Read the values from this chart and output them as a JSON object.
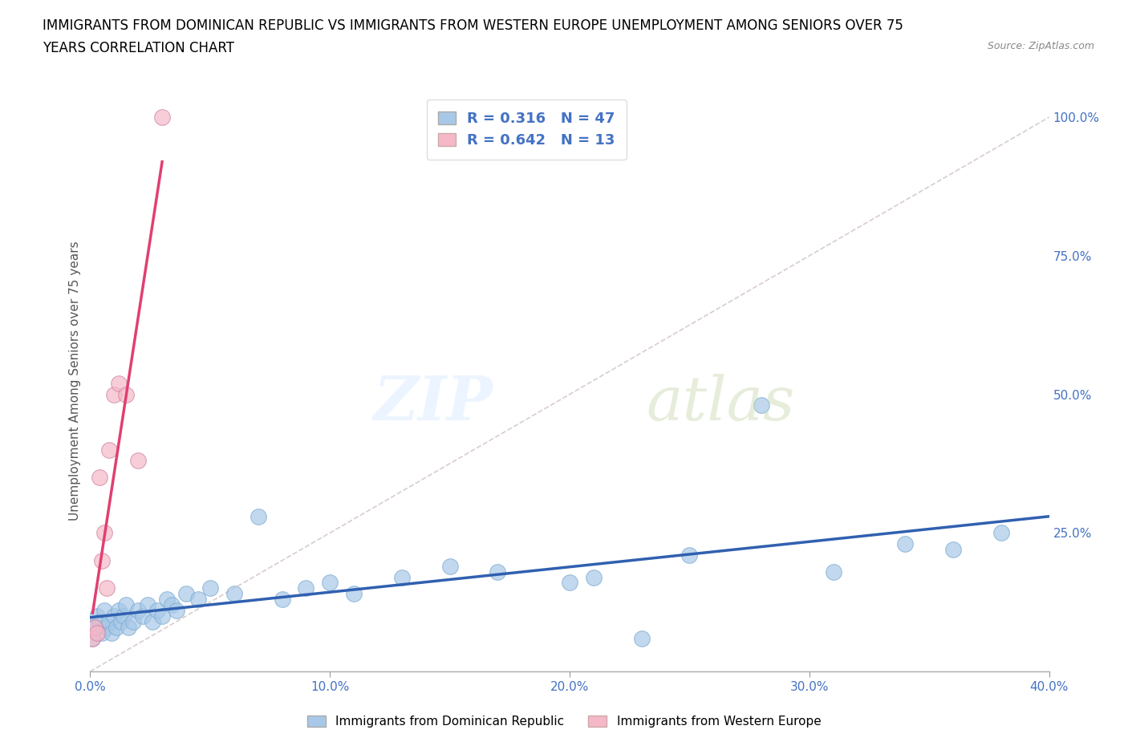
{
  "title_line1": "IMMIGRANTS FROM DOMINICAN REPUBLIC VS IMMIGRANTS FROM WESTERN EUROPE UNEMPLOYMENT AMONG SENIORS OVER 75",
  "title_line2": "YEARS CORRELATION CHART",
  "source": "Source: ZipAtlas.com",
  "ylabel": "Unemployment Among Seniors over 75 years",
  "xlim": [
    0.0,
    0.4
  ],
  "ylim": [
    0.0,
    1.05
  ],
  "xtick_labels": [
    "0.0%",
    "10.0%",
    "20.0%",
    "30.0%",
    "40.0%"
  ],
  "xtick_vals": [
    0.0,
    0.1,
    0.2,
    0.3,
    0.4
  ],
  "ytick_labels": [
    "100.0%",
    "75.0%",
    "50.0%",
    "25.0%"
  ],
  "ytick_vals": [
    1.0,
    0.75,
    0.5,
    0.25
  ],
  "blue_R": 0.316,
  "blue_N": 47,
  "pink_R": 0.642,
  "pink_N": 13,
  "blue_color": "#a8c8e8",
  "pink_color": "#f4b8c8",
  "blue_line_color": "#3060b0",
  "pink_line_color": "#e04070",
  "grid_color": "#cccccc",
  "blue_x": [
    0.001,
    0.002,
    0.003,
    0.004,
    0.005,
    0.006,
    0.007,
    0.008,
    0.009,
    0.01,
    0.011,
    0.012,
    0.013,
    0.014,
    0.015,
    0.016,
    0.018,
    0.02,
    0.022,
    0.024,
    0.026,
    0.028,
    0.03,
    0.032,
    0.034,
    0.036,
    0.04,
    0.045,
    0.05,
    0.06,
    0.07,
    0.08,
    0.09,
    0.1,
    0.11,
    0.13,
    0.15,
    0.17,
    0.2,
    0.21,
    0.23,
    0.25,
    0.28,
    0.31,
    0.34,
    0.36,
    0.38
  ],
  "blue_y": [
    0.06,
    0.08,
    0.1,
    0.09,
    0.07,
    0.11,
    0.08,
    0.09,
    0.07,
    0.1,
    0.08,
    0.11,
    0.09,
    0.1,
    0.12,
    0.08,
    0.09,
    0.11,
    0.1,
    0.12,
    0.09,
    0.11,
    0.1,
    0.13,
    0.12,
    0.11,
    0.14,
    0.13,
    0.15,
    0.14,
    0.28,
    0.13,
    0.15,
    0.16,
    0.14,
    0.17,
    0.19,
    0.18,
    0.16,
    0.17,
    0.06,
    0.21,
    0.48,
    0.18,
    0.23,
    0.22,
    0.25
  ],
  "pink_x": [
    0.001,
    0.002,
    0.003,
    0.004,
    0.005,
    0.006,
    0.007,
    0.008,
    0.01,
    0.012,
    0.015,
    0.02,
    0.03
  ],
  "pink_y": [
    0.06,
    0.08,
    0.07,
    0.35,
    0.2,
    0.25,
    0.15,
    0.4,
    0.5,
    0.52,
    0.5,
    0.38,
    1.0
  ]
}
